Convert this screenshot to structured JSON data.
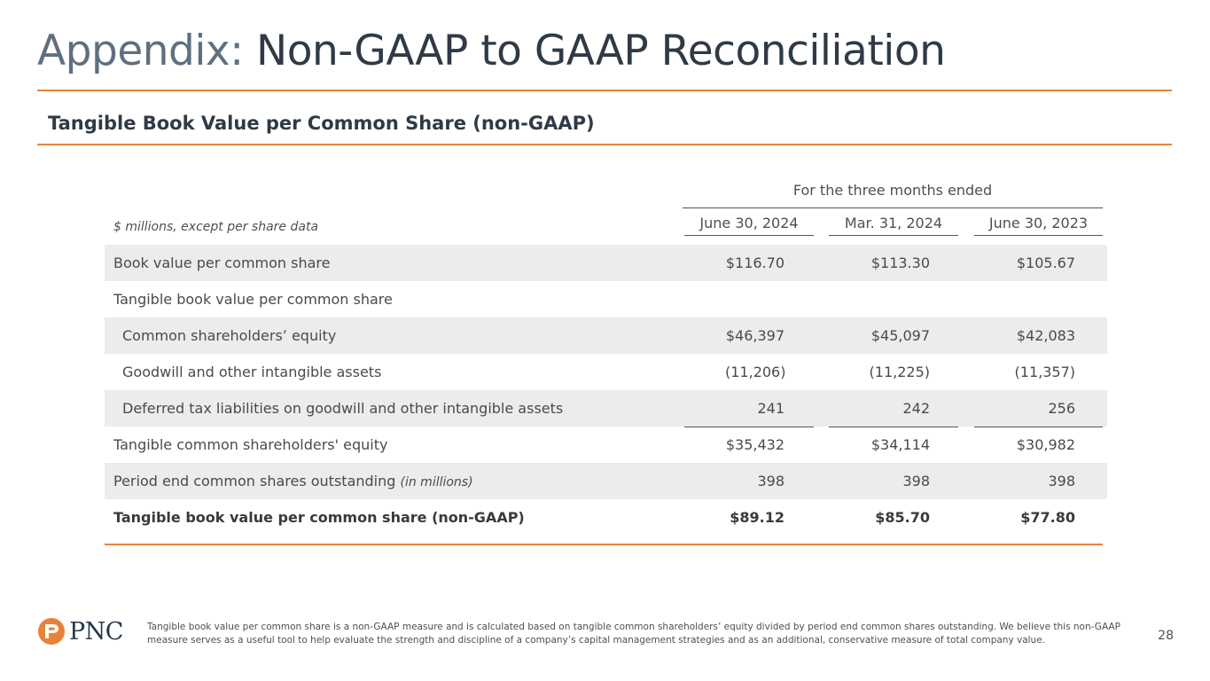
{
  "header": {
    "title_prefix": "Appendix:",
    "title_main": "Non-GAAP to GAAP Reconciliation",
    "subtitle": "Tangible Book Value per Common Share (non-GAAP)"
  },
  "table": {
    "period_header": "For the three months ended",
    "units_label": "$ millions, except per share data",
    "columns": [
      "June 30, 2024",
      "Mar. 31, 2024",
      "June 30, 2023"
    ],
    "rows": [
      {
        "label": "Book value per common share",
        "values": [
          "$116.70",
          "$113.30",
          "$105.67"
        ]
      },
      {
        "label": "Tangible book value per common share",
        "values": [
          "",
          "",
          ""
        ]
      },
      {
        "label": "Common shareholders’ equity",
        "values": [
          "$46,397",
          "$45,097",
          "$42,083"
        ]
      },
      {
        "label": "Goodwill and other intangible assets",
        "values": [
          "(11,206)",
          "(11,225)",
          "(11,357)"
        ]
      },
      {
        "label": "Deferred tax liabilities on goodwill and other intangible assets",
        "values": [
          "241",
          "242",
          "256"
        ]
      },
      {
        "label": "Tangible common shareholders' equity",
        "values": [
          "$35,432",
          "$34,114",
          "$30,982"
        ]
      },
      {
        "label": "Period end common shares outstanding",
        "label_note": "(in millions)",
        "values": [
          "398",
          "398",
          "398"
        ]
      },
      {
        "label": "Tangible book value per common share (non-GAAP)",
        "values": [
          "$89.12",
          "$85.70",
          "$77.80"
        ]
      }
    ]
  },
  "footer": {
    "logo_text": "PNC",
    "footnote": "Tangible book value per common share is a non-GAAP measure and is calculated based on tangible common shareholders’ equity divided by period end common shares outstanding. We believe this non-GAAP measure serves as a useful tool to help evaluate the strength and discipline of a company’s capital management strategies and as an additional, conservative measure of total company value.",
    "page_number": "28"
  },
  "colors": {
    "accent": "#e8823a",
    "navy": "#23384d",
    "row_shade": "#ececec"
  }
}
